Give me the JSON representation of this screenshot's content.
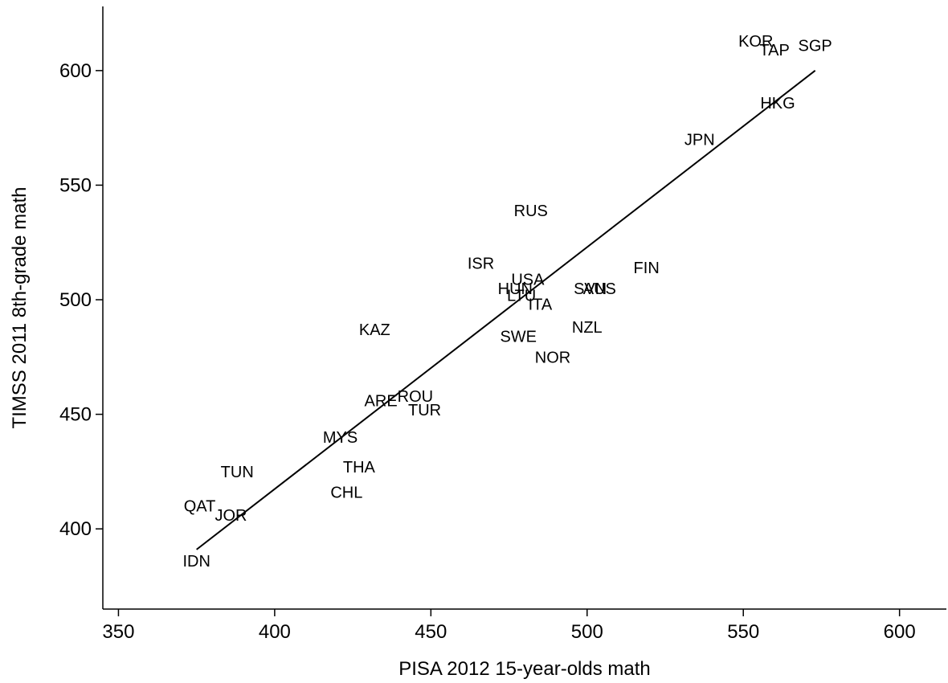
{
  "chart_data": {
    "type": "scatter",
    "title": "",
    "xlabel": "PISA 2012 15-year-olds math",
    "ylabel": "TIMSS 2011 8th-grade math",
    "xlim": [
      345,
      615
    ],
    "ylim": [
      365,
      628
    ],
    "xticks": [
      350,
      400,
      450,
      500,
      550,
      600
    ],
    "yticks": [
      400,
      450,
      500,
      550,
      600
    ],
    "grid": false,
    "legend": "none",
    "marker": "country-code-label",
    "points": [
      {
        "label": "KOR",
        "x": 554,
        "y": 613
      },
      {
        "label": "TAP",
        "x": 560,
        "y": 609
      },
      {
        "label": "SGP",
        "x": 573,
        "y": 611
      },
      {
        "label": "HKG",
        "x": 561,
        "y": 586
      },
      {
        "label": "JPN",
        "x": 536,
        "y": 570
      },
      {
        "label": "RUS",
        "x": 482,
        "y": 539
      },
      {
        "label": "ISR",
        "x": 466,
        "y": 516
      },
      {
        "label": "FIN",
        "x": 519,
        "y": 514
      },
      {
        "label": "USA",
        "x": 481,
        "y": 509
      },
      {
        "label": "SVN",
        "x": 501,
        "y": 505
      },
      {
        "label": "AUS",
        "x": 504,
        "y": 505
      },
      {
        "label": "HUN",
        "x": 477,
        "y": 505
      },
      {
        "label": "LTU",
        "x": 479,
        "y": 502
      },
      {
        "label": "ITA",
        "x": 485,
        "y": 498
      },
      {
        "label": "NZL",
        "x": 500,
        "y": 488
      },
      {
        "label": "KAZ",
        "x": 432,
        "y": 487
      },
      {
        "label": "SWE",
        "x": 478,
        "y": 484
      },
      {
        "label": "NOR",
        "x": 489,
        "y": 475
      },
      {
        "label": "ROU",
        "x": 445,
        "y": 458
      },
      {
        "label": "ARE",
        "x": 434,
        "y": 456
      },
      {
        "label": "TUR",
        "x": 448,
        "y": 452
      },
      {
        "label": "MYS",
        "x": 421,
        "y": 440
      },
      {
        "label": "THA",
        "x": 427,
        "y": 427
      },
      {
        "label": "TUN",
        "x": 388,
        "y": 425
      },
      {
        "label": "CHL",
        "x": 423,
        "y": 416
      },
      {
        "label": "QAT",
        "x": 376,
        "y": 410
      },
      {
        "label": "JOR",
        "x": 386,
        "y": 406
      },
      {
        "label": "IDN",
        "x": 375,
        "y": 386
      }
    ],
    "fit_line": {
      "x": [
        375,
        573
      ],
      "y": [
        391,
        600
      ]
    }
  }
}
